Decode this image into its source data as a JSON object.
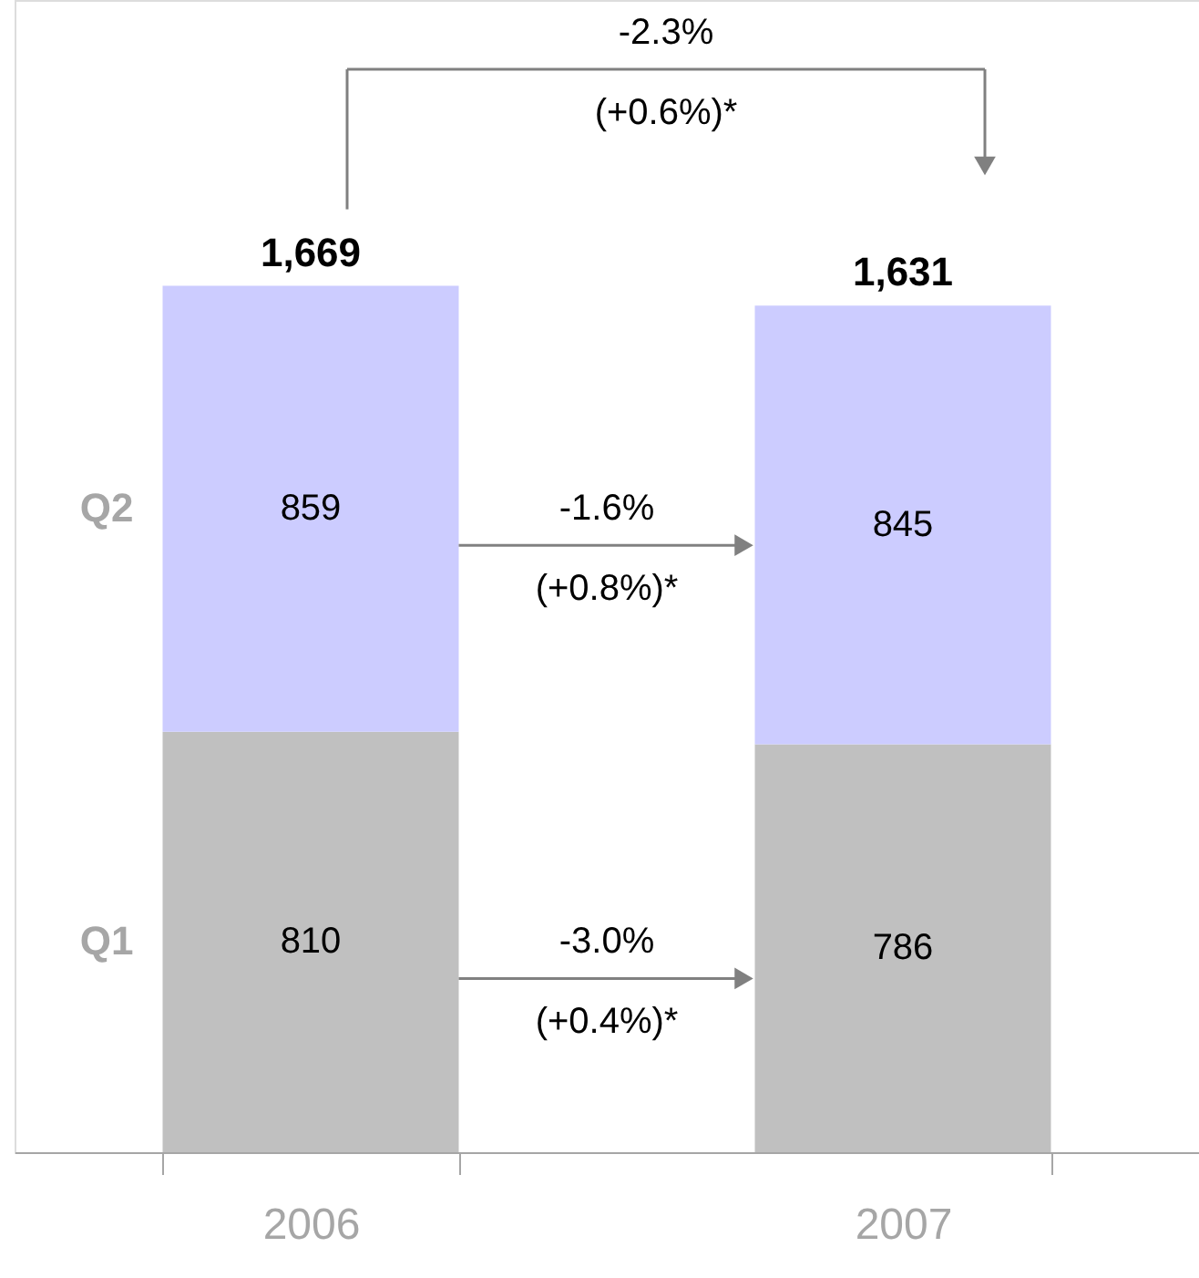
{
  "chart_data": {
    "type": "bar",
    "stacked": true,
    "categories": [
      "2006",
      "2007"
    ],
    "series": [
      {
        "name": "Q1",
        "color": "#c0c0c0",
        "values": [
          810,
          786
        ]
      },
      {
        "name": "Q2",
        "color": "#ccccff",
        "values": [
          859,
          845
        ]
      }
    ],
    "data_labels": true,
    "totals": [
      "1,669",
      "1,631"
    ],
    "tick_labels": "x",
    "annotations": [
      "-2.3%",
      "(+0.6%)*",
      "-1.6%",
      "(+0.8%)*",
      "-3.0%",
      "(+0.4%)*"
    ]
  }
}
